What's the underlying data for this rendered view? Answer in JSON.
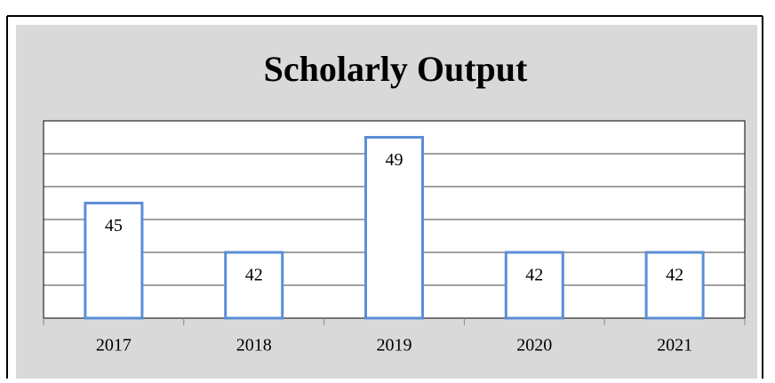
{
  "chart_data": {
    "type": "bar",
    "title": "Scholarly Output",
    "categories": [
      "2017",
      "2018",
      "2019",
      "2020",
      "2021"
    ],
    "values": [
      45,
      42,
      49,
      42,
      42
    ],
    "color": "#5b8ed6",
    "ylim": [
      38,
      50
    ],
    "yticks": [
      38,
      40,
      42,
      44,
      46,
      48,
      50
    ],
    "grid": true
  }
}
